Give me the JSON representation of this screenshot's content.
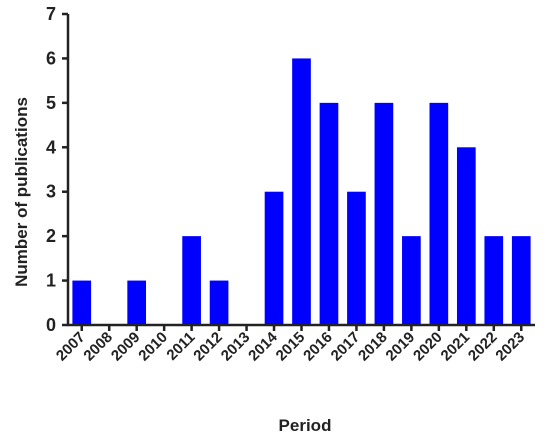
{
  "chart_data": {
    "type": "bar",
    "categories": [
      "2007",
      "2008",
      "2009",
      "2010",
      "2011",
      "2012",
      "2013",
      "2014",
      "2015",
      "2016",
      "2017",
      "2018",
      "2019",
      "2020",
      "2021",
      "2022",
      "2023"
    ],
    "values": [
      1,
      0,
      1,
      0,
      2,
      1,
      0,
      3,
      6,
      5,
      3,
      5,
      2,
      5,
      4,
      2,
      2
    ],
    "title": "",
    "xlabel": "Period",
    "ylabel": "Number of publications",
    "ylim": [
      0,
      7
    ],
    "yticks": [
      0,
      1,
      2,
      3,
      4,
      5,
      6,
      7
    ],
    "bar_color": "#0000ff",
    "axis_color": "#222222",
    "grid": false,
    "legend": false
  }
}
